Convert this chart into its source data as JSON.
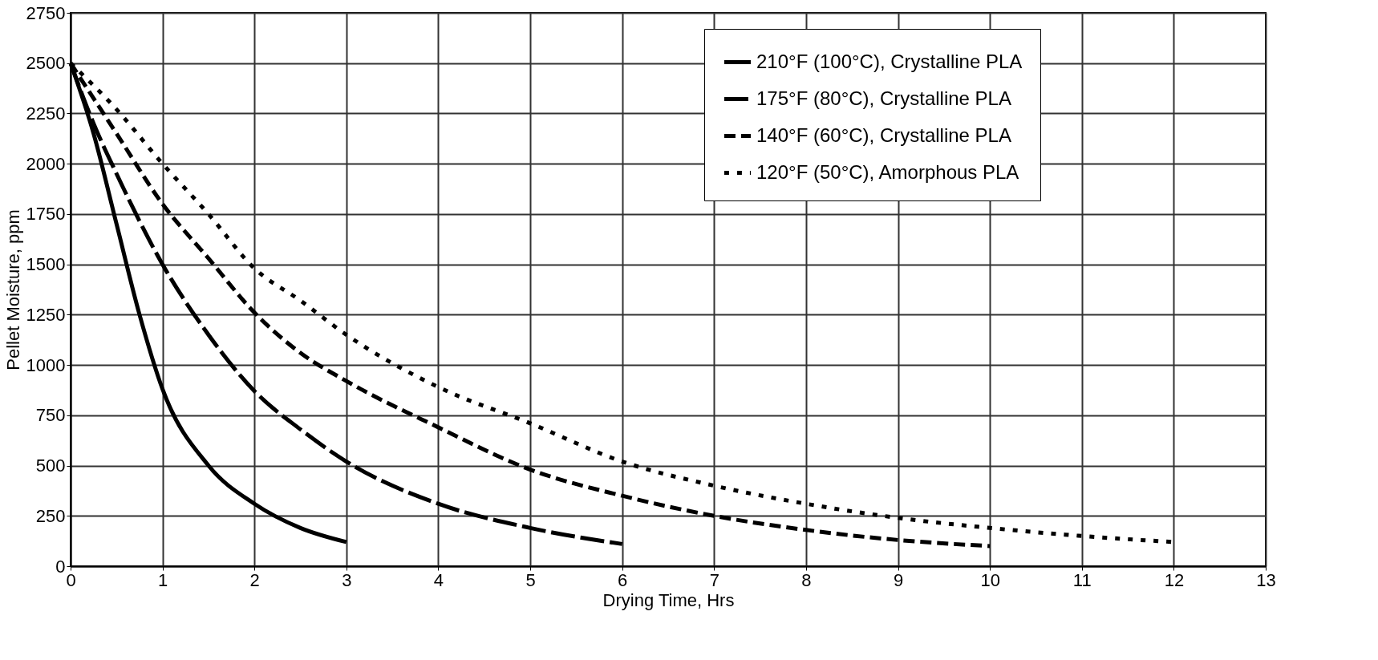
{
  "chart_data": {
    "type": "line",
    "xlabel": "Drying Time, Hrs",
    "ylabel": "Pellet Moisture, ppm",
    "xlim": [
      0,
      13
    ],
    "xticks": [
      0,
      1,
      2,
      3,
      4,
      5,
      6,
      7,
      8,
      9,
      10,
      11,
      12,
      13
    ],
    "ylim": [
      0,
      2750
    ],
    "yticks": [
      0,
      250,
      500,
      750,
      1000,
      1250,
      1500,
      1750,
      2000,
      2250,
      2500,
      2750
    ],
    "grid": true,
    "legend": "top right",
    "marker": "none",
    "series": [
      {
        "name": "210°F (100°C), Crystalline PLA",
        "color": "#000000",
        "line_style": "solid",
        "x": [
          0,
          0.25,
          0.5,
          0.75,
          1,
          1.5,
          2,
          2.5,
          3
        ],
        "values": [
          2500,
          2150,
          1700,
          1250,
          880,
          500,
          310,
          190,
          120
        ]
      },
      {
        "name": "175°F (80°C), Crystalline PLA",
        "color": "#000000",
        "line_style": "dashed",
        "x": [
          0,
          0.25,
          0.5,
          1,
          1.5,
          2,
          2.5,
          3,
          4,
          5,
          6
        ],
        "values": [
          2500,
          2200,
          1950,
          1500,
          1150,
          870,
          680,
          520,
          310,
          190,
          110
        ]
      },
      {
        "name": "140°F (60°C), Crystalline PLA",
        "color": "#000000",
        "line_style": "dashed",
        "x": [
          0,
          0.5,
          1,
          1.5,
          2,
          2.5,
          3,
          4,
          5,
          6,
          7,
          8,
          9,
          10
        ],
        "values": [
          2500,
          2150,
          1800,
          1530,
          1260,
          1060,
          920,
          690,
          480,
          350,
          250,
          180,
          130,
          100
        ]
      },
      {
        "name": "120°F (50°C), Amorphous PLA",
        "color": "#000000",
        "line_style": "dotted",
        "x": [
          0,
          0.5,
          1,
          1.5,
          2,
          2.5,
          3,
          4,
          5,
          6,
          7,
          8,
          9,
          10,
          11,
          12
        ],
        "values": [
          2500,
          2270,
          2000,
          1750,
          1480,
          1320,
          1150,
          890,
          710,
          520,
          400,
          310,
          240,
          190,
          150,
          120
        ]
      }
    ]
  }
}
